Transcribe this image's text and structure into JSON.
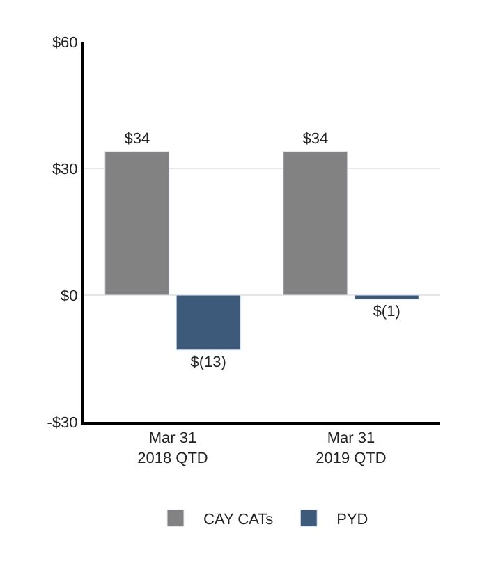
{
  "chart_data": {
    "type": "bar",
    "categories": [
      "Mar 31\n2018 QTD",
      "Mar 31\n2019 QTD"
    ],
    "series": [
      {
        "name": "CAY CATs",
        "color": "#828282",
        "values": [
          34,
          34
        ],
        "value_labels": [
          "$34",
          "$34"
        ]
      },
      {
        "name": "PYD",
        "color": "#3d5a7a",
        "values": [
          -13,
          -1
        ],
        "value_labels": [
          "$(13)",
          "$(1)"
        ]
      }
    ],
    "ylim": [
      -30,
      60
    ],
    "yticks": [
      {
        "value": -30,
        "label": "-$30"
      },
      {
        "value": 0,
        "label": "$0"
      },
      {
        "value": 30,
        "label": "$30"
      },
      {
        "value": 60,
        "label": "$60"
      }
    ],
    "grid": "y",
    "legend": "bottom"
  }
}
